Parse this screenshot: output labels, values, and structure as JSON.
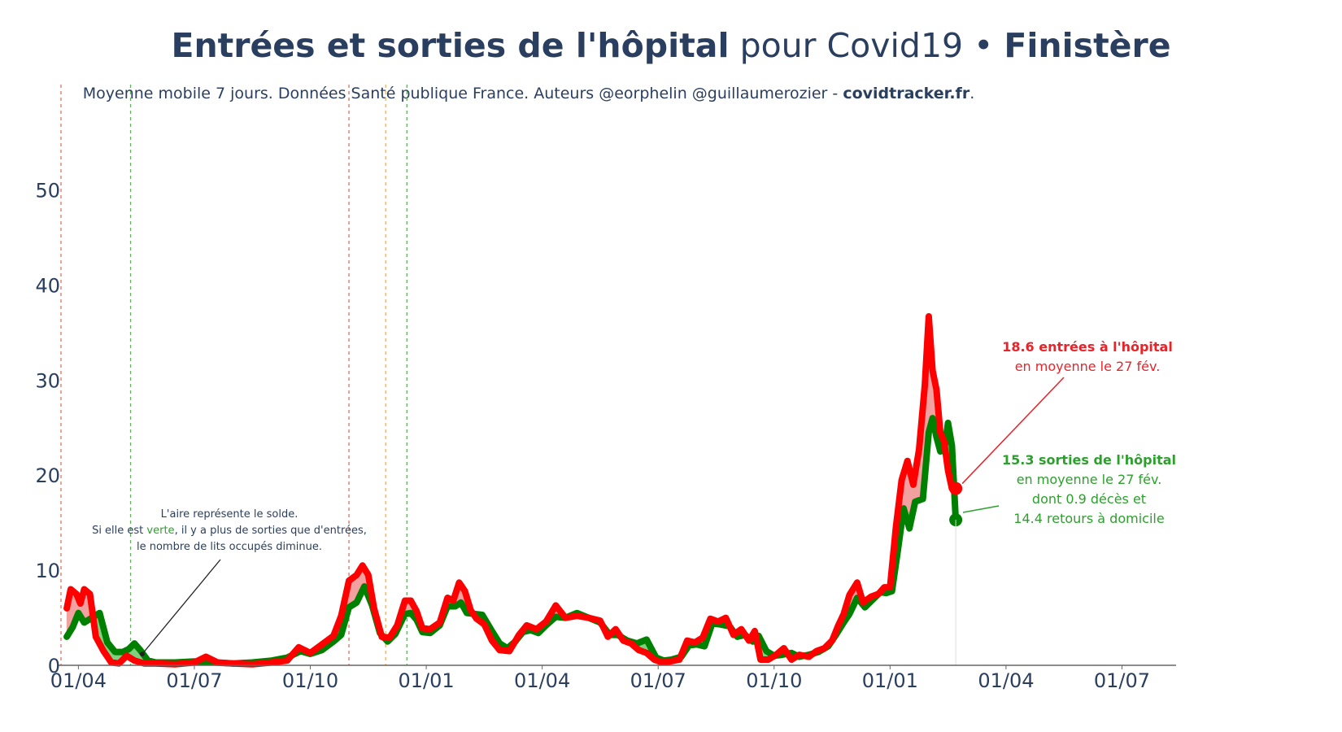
{
  "header": {
    "title_bold": "Entrées et sorties de l'hôpital",
    "title_normal": "pour Covid19 •",
    "title_region": "Finistère",
    "subtitle_text": "Moyenne mobile 7 jours. Données Santé publique France. Auteurs @eorphelin @guillaumerozier -",
    "subtitle_site": "covidtracker.fr",
    "subtitle_end": "."
  },
  "colors": {
    "entrees": "#ff0000",
    "sorties": "#008000",
    "area_red": "#f3a0a0",
    "area_green": "#80d080",
    "axis_text": "#2a3f5f",
    "vline_red": "#e07060",
    "vline_green": "#60b060",
    "vline_orange": "#f0b060"
  },
  "chart_data": {
    "type": "line",
    "x_unit": "months since 2020-03-01",
    "xticks": [
      {
        "label": "01/04",
        "x": 1
      },
      {
        "label": "01/07",
        "x": 4
      },
      {
        "label": "01/10",
        "x": 7
      },
      {
        "label": "01/01",
        "x": 10
      },
      {
        "label": "01/04",
        "x": 13
      },
      {
        "label": "01/07",
        "x": 16
      },
      {
        "label": "01/10",
        "x": 19
      },
      {
        "label": "01/01",
        "x": 22
      },
      {
        "label": "01/04",
        "x": 25
      },
      {
        "label": "01/07",
        "x": 28
      }
    ],
    "xlim": [
      0.55,
      29.4
    ],
    "ylim": [
      0,
      58
    ],
    "yticks": [
      0,
      10,
      20,
      30,
      40,
      50
    ],
    "vlines": [
      {
        "x": 0.55,
        "color": "red"
      },
      {
        "x": 2.35,
        "color": "green"
      },
      {
        "x": 8.0,
        "color": "red"
      },
      {
        "x": 8.95,
        "color": "orange"
      },
      {
        "x": 9.5,
        "color": "green"
      }
    ],
    "series": [
      {
        "name": "entrées",
        "color": "#ff0000",
        "points": [
          [
            0.7,
            6
          ],
          [
            0.8,
            8
          ],
          [
            0.95,
            7.5
          ],
          [
            1.05,
            6.5
          ],
          [
            1.15,
            8
          ],
          [
            1.3,
            7.5
          ],
          [
            1.45,
            3
          ],
          [
            1.65,
            1.5
          ],
          [
            1.85,
            0.3
          ],
          [
            2.05,
            0.2
          ],
          [
            2.25,
            1
          ],
          [
            2.45,
            0.5
          ],
          [
            2.7,
            0.2
          ],
          [
            3.0,
            0.2
          ],
          [
            3.5,
            0.1
          ],
          [
            4.0,
            0.3
          ],
          [
            4.3,
            0.9
          ],
          [
            4.6,
            0.3
          ],
          [
            5.0,
            0.2
          ],
          [
            5.5,
            0.1
          ],
          [
            6.0,
            0.3
          ],
          [
            6.4,
            0.5
          ],
          [
            6.7,
            1.9
          ],
          [
            7.0,
            1.3
          ],
          [
            7.3,
            2.2
          ],
          [
            7.6,
            3.1
          ],
          [
            7.8,
            5.2
          ],
          [
            8.0,
            8.9
          ],
          [
            8.2,
            9.5
          ],
          [
            8.35,
            10.5
          ],
          [
            8.5,
            9.5
          ],
          [
            8.65,
            6
          ],
          [
            8.85,
            3
          ],
          [
            9.05,
            2.9
          ],
          [
            9.25,
            4.2
          ],
          [
            9.45,
            6.8
          ],
          [
            9.6,
            6.8
          ],
          [
            9.75,
            5.7
          ],
          [
            9.9,
            3.9
          ],
          [
            10.1,
            3.8
          ],
          [
            10.35,
            4.5
          ],
          [
            10.55,
            7.1
          ],
          [
            10.7,
            6.8
          ],
          [
            10.85,
            8.7
          ],
          [
            11.0,
            7.8
          ],
          [
            11.15,
            5.8
          ],
          [
            11.3,
            4.9
          ],
          [
            11.5,
            4.3
          ],
          [
            11.7,
            2.6
          ],
          [
            11.9,
            1.6
          ],
          [
            12.15,
            1.5
          ],
          [
            12.4,
            3.2
          ],
          [
            12.6,
            4.2
          ],
          [
            12.85,
            3.8
          ],
          [
            13.1,
            4.6
          ],
          [
            13.35,
            6.3
          ],
          [
            13.6,
            5
          ],
          [
            13.9,
            5.2
          ],
          [
            14.2,
            5
          ],
          [
            14.5,
            4.7
          ],
          [
            14.7,
            3
          ],
          [
            14.9,
            3.8
          ],
          [
            15.1,
            2.6
          ],
          [
            15.3,
            2.3
          ],
          [
            15.5,
            1.6
          ],
          [
            15.7,
            1.3
          ],
          [
            15.9,
            0.6
          ],
          [
            16.1,
            0.3
          ],
          [
            16.3,
            0.4
          ],
          [
            16.55,
            0.6
          ],
          [
            16.75,
            2.6
          ],
          [
            16.95,
            2.4
          ],
          [
            17.15,
            2.9
          ],
          [
            17.35,
            4.9
          ],
          [
            17.55,
            4.6
          ],
          [
            17.75,
            5
          ],
          [
            17.95,
            3.2
          ],
          [
            18.15,
            3.8
          ],
          [
            18.35,
            2.6
          ],
          [
            18.5,
            3.6
          ],
          [
            18.65,
            0.6
          ],
          [
            18.85,
            0.6
          ],
          [
            19.05,
            1.1
          ],
          [
            19.25,
            1.8
          ],
          [
            19.45,
            0.6
          ],
          [
            19.65,
            1.1
          ],
          [
            19.9,
            0.9
          ],
          [
            20.1,
            1.5
          ],
          [
            20.3,
            1.8
          ],
          [
            20.5,
            2.6
          ],
          [
            20.65,
            4.1
          ],
          [
            20.8,
            5.4
          ],
          [
            20.95,
            7.4
          ],
          [
            21.15,
            8.7
          ],
          [
            21.3,
            6.6
          ],
          [
            21.5,
            7.2
          ],
          [
            21.7,
            7.5
          ],
          [
            21.85,
            8.2
          ],
          [
            22.0,
            8.2
          ],
          [
            22.15,
            14.5
          ],
          [
            22.3,
            19.5
          ],
          [
            22.45,
            21.5
          ],
          [
            22.6,
            19
          ],
          [
            22.75,
            22.7
          ],
          [
            22.9,
            29.5
          ],
          [
            23.0,
            36.7
          ],
          [
            23.1,
            31
          ],
          [
            23.2,
            29
          ],
          [
            23.3,
            24.5
          ],
          [
            23.4,
            23.5
          ],
          [
            23.5,
            20.5
          ],
          [
            23.6,
            18.6
          ],
          [
            23.7,
            18.6
          ]
        ]
      },
      {
        "name": "sorties",
        "color": "#008000",
        "points": [
          [
            0.7,
            3
          ],
          [
            0.85,
            4
          ],
          [
            1.0,
            5.5
          ],
          [
            1.15,
            4.5
          ],
          [
            1.35,
            5
          ],
          [
            1.55,
            5.5
          ],
          [
            1.75,
            2.4
          ],
          [
            1.95,
            1.4
          ],
          [
            2.15,
            1.4
          ],
          [
            2.3,
            1.7
          ],
          [
            2.45,
            2.3
          ],
          [
            2.6,
            1.6
          ],
          [
            2.8,
            0.5
          ],
          [
            3.0,
            0.3
          ],
          [
            3.5,
            0.3
          ],
          [
            4.0,
            0.4
          ],
          [
            4.5,
            0.3
          ],
          [
            5.0,
            0.2
          ],
          [
            5.5,
            0.3
          ],
          [
            6.0,
            0.5
          ],
          [
            6.4,
            0.8
          ],
          [
            6.75,
            1.5
          ],
          [
            7.0,
            1.2
          ],
          [
            7.3,
            1.6
          ],
          [
            7.6,
            2.5
          ],
          [
            7.8,
            3.2
          ],
          [
            8.0,
            6.1
          ],
          [
            8.2,
            6.6
          ],
          [
            8.4,
            8.3
          ],
          [
            8.6,
            6.3
          ],
          [
            8.8,
            3.4
          ],
          [
            9.0,
            2.5
          ],
          [
            9.2,
            3.3
          ],
          [
            9.45,
            5.4
          ],
          [
            9.6,
            5.5
          ],
          [
            9.75,
            4.8
          ],
          [
            9.9,
            3.5
          ],
          [
            10.1,
            3.4
          ],
          [
            10.35,
            4.2
          ],
          [
            10.55,
            6.2
          ],
          [
            10.75,
            6.2
          ],
          [
            10.9,
            6.6
          ],
          [
            11.05,
            5.5
          ],
          [
            11.25,
            5.4
          ],
          [
            11.45,
            5.3
          ],
          [
            11.7,
            3.6
          ],
          [
            11.9,
            2.3
          ],
          [
            12.1,
            1.8
          ],
          [
            12.3,
            2.5
          ],
          [
            12.5,
            3.5
          ],
          [
            12.7,
            3.7
          ],
          [
            12.9,
            3.4
          ],
          [
            13.1,
            4.2
          ],
          [
            13.35,
            5.1
          ],
          [
            13.6,
            5
          ],
          [
            13.9,
            5.5
          ],
          [
            14.2,
            5
          ],
          [
            14.5,
            4.5
          ],
          [
            14.75,
            3.2
          ],
          [
            14.95,
            3.2
          ],
          [
            15.2,
            2.6
          ],
          [
            15.45,
            2.3
          ],
          [
            15.7,
            2.7
          ],
          [
            15.95,
            0.8
          ],
          [
            16.15,
            0.5
          ],
          [
            16.35,
            0.6
          ],
          [
            16.6,
            0.9
          ],
          [
            16.8,
            2.1
          ],
          [
            17.0,
            2.2
          ],
          [
            17.2,
            2
          ],
          [
            17.4,
            4.4
          ],
          [
            17.6,
            4.3
          ],
          [
            17.85,
            4.1
          ],
          [
            18.05,
            3
          ],
          [
            18.25,
            3.2
          ],
          [
            18.45,
            2.5
          ],
          [
            18.6,
            3.1
          ],
          [
            18.8,
            1.5
          ],
          [
            19.0,
            1
          ],
          [
            19.2,
            1.1
          ],
          [
            19.45,
            1.3
          ],
          [
            19.65,
            0.9
          ],
          [
            19.9,
            1.1
          ],
          [
            20.15,
            1.4
          ],
          [
            20.4,
            2
          ],
          [
            20.6,
            3.2
          ],
          [
            20.8,
            4.5
          ],
          [
            20.95,
            5.4
          ],
          [
            21.15,
            7.1
          ],
          [
            21.35,
            6.1
          ],
          [
            21.55,
            6.9
          ],
          [
            21.75,
            7.7
          ],
          [
            21.9,
            7.6
          ],
          [
            22.05,
            7.8
          ],
          [
            22.2,
            12
          ],
          [
            22.35,
            16.5
          ],
          [
            22.5,
            14.4
          ],
          [
            22.65,
            17.2
          ],
          [
            22.85,
            17.5
          ],
          [
            23.0,
            24.5
          ],
          [
            23.1,
            26
          ],
          [
            23.2,
            24
          ],
          [
            23.3,
            22.5
          ],
          [
            23.4,
            22.6
          ],
          [
            23.5,
            25.5
          ],
          [
            23.6,
            23.1
          ],
          [
            23.7,
            15.3
          ]
        ]
      }
    ]
  },
  "annotations": {
    "note_line1": "L'aire représente le solde.",
    "note_line2_prefix": "Si elle est",
    "note_line2_colored": "verte",
    "note_line2_suffix": ", il y a plus de sorties que d'entrées,",
    "note_line3": "le nombre de lits occupés diminue.",
    "entrees_bold": "18.6 entrées à l'hôpital",
    "entrees_line2": "en moyenne le 27 fév.",
    "sorties_bold": "15.3 sorties de l'hôpital",
    "sorties_line2": "en moyenne le 27 fév.",
    "sorties_line3": "dont 0.9 décès et",
    "sorties_line4": "14.4 retours à domicile"
  }
}
